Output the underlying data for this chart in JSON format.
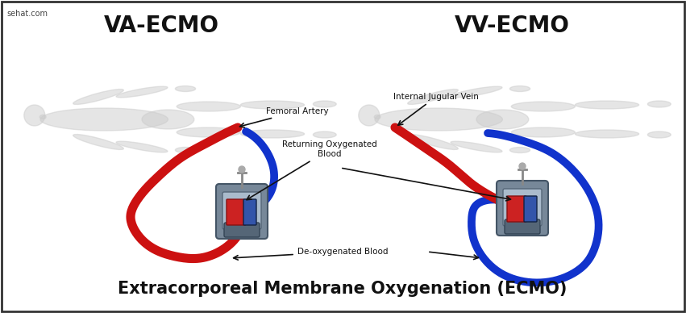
{
  "title": "Extracorporeal Membrane Oxygenation (ECMO)",
  "title_fontsize": 15,
  "title_fontweight": "bold",
  "watermark": "sehat.com",
  "va_ecmo_label": "VA-ECMO",
  "vv_ecmo_label": "VV-ECMO",
  "label_fontsize": 20,
  "label_fontweight": "bold",
  "femoral_artery": "Femoral Artery",
  "internal_jugular": "Internal Jugular Vein",
  "returning_blood": "Returning Oxygenated\nBlood",
  "deoxygenated": "De-oxygenated Blood",
  "annotation_fontsize": 7.5,
  "bg_color": "#ffffff",
  "border_color": "#333333",
  "red_color": "#cc1111",
  "blue_color": "#1133cc",
  "text_color": "#111111",
  "figsize": [
    8.51,
    3.88
  ],
  "dpi": 100,
  "body_color": "#cccccc",
  "body_alpha": 0.5,
  "tube_lw": 7,
  "arrow_color": "#111111",
  "machine_base_color": "#8899aa",
  "machine_red_color": "#cc2222",
  "machine_blue_color": "#3355aa"
}
